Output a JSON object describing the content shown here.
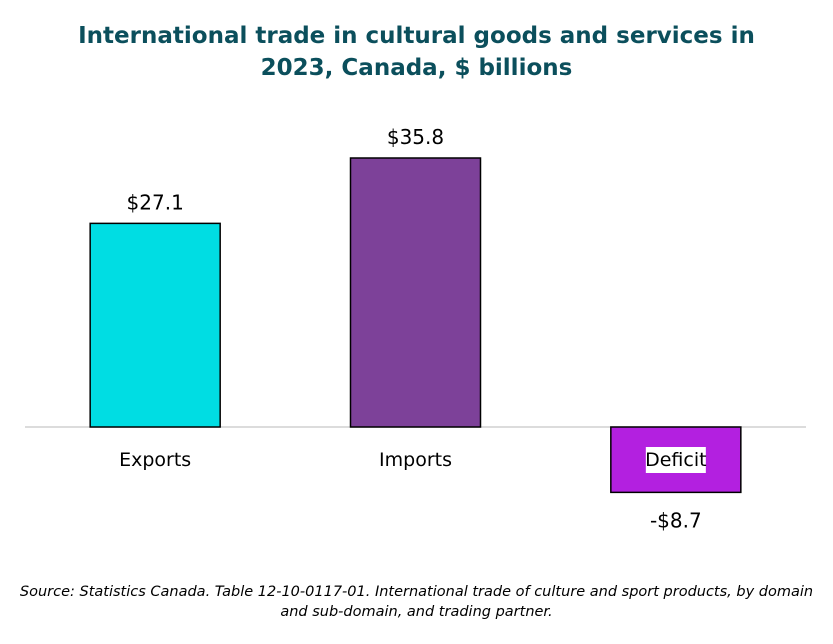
{
  "colors": {
    "title": "#0b4f5c",
    "axis": "#d0d0d0",
    "bar_outline": "#000000",
    "label_background": "#ffffff"
  },
  "chart_data": {
    "type": "bar",
    "title_lines": [
      "International trade in cultural goods and services in",
      "2023, Canada, $ billions"
    ],
    "categories": [
      "Exports",
      "Imports",
      "Deficit"
    ],
    "values": [
      27.1,
      35.8,
      -8.7
    ],
    "data_labels": [
      "$27.1",
      "$35.8",
      "-$8.7"
    ],
    "bar_colors": [
      "#00dde3",
      "#7d4199",
      "#b320e0"
    ],
    "ylim": [
      -8.7,
      35.8
    ],
    "grid": false,
    "legend": "none",
    "xlabel": "",
    "ylabel": ""
  },
  "source_lines": [
    "Source: Statistics Canada. Table 12-10-0117-01. International trade of culture and sport products, by domain",
    "and sub-domain, and trading partner."
  ]
}
